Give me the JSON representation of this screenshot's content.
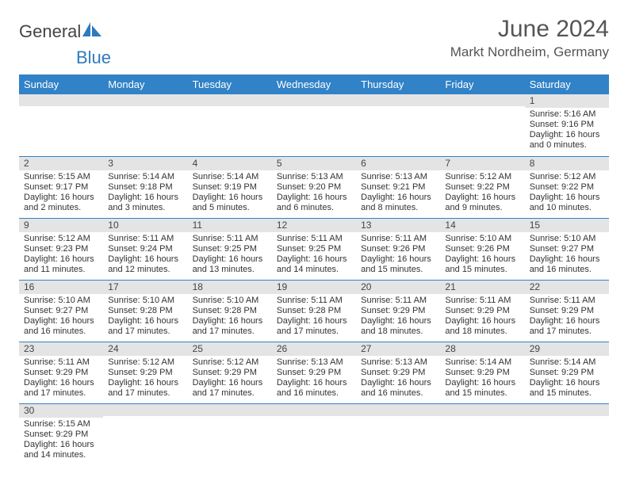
{
  "logo": {
    "text1": "General",
    "text2": "Blue"
  },
  "title": "June 2024",
  "location": "Markt Nordheim, Germany",
  "colors": {
    "header_bg": "#3182c7",
    "header_text": "#ffffff",
    "daynum_bg": "#e4e4e4",
    "rule": "#3182c7",
    "logo_blue": "#2d7bbd",
    "logo_gray": "#444444"
  },
  "weekdays": [
    "Sunday",
    "Monday",
    "Tuesday",
    "Wednesday",
    "Thursday",
    "Friday",
    "Saturday"
  ],
  "weeks": [
    [
      {
        "n": "",
        "sr": "",
        "ss": "",
        "dl": ""
      },
      {
        "n": "",
        "sr": "",
        "ss": "",
        "dl": ""
      },
      {
        "n": "",
        "sr": "",
        "ss": "",
        "dl": ""
      },
      {
        "n": "",
        "sr": "",
        "ss": "",
        "dl": ""
      },
      {
        "n": "",
        "sr": "",
        "ss": "",
        "dl": ""
      },
      {
        "n": "",
        "sr": "",
        "ss": "",
        "dl": ""
      },
      {
        "n": "1",
        "sr": "Sunrise: 5:16 AM",
        "ss": "Sunset: 9:16 PM",
        "dl": "Daylight: 16 hours and 0 minutes."
      }
    ],
    [
      {
        "n": "2",
        "sr": "Sunrise: 5:15 AM",
        "ss": "Sunset: 9:17 PM",
        "dl": "Daylight: 16 hours and 2 minutes."
      },
      {
        "n": "3",
        "sr": "Sunrise: 5:14 AM",
        "ss": "Sunset: 9:18 PM",
        "dl": "Daylight: 16 hours and 3 minutes."
      },
      {
        "n": "4",
        "sr": "Sunrise: 5:14 AM",
        "ss": "Sunset: 9:19 PM",
        "dl": "Daylight: 16 hours and 5 minutes."
      },
      {
        "n": "5",
        "sr": "Sunrise: 5:13 AM",
        "ss": "Sunset: 9:20 PM",
        "dl": "Daylight: 16 hours and 6 minutes."
      },
      {
        "n": "6",
        "sr": "Sunrise: 5:13 AM",
        "ss": "Sunset: 9:21 PM",
        "dl": "Daylight: 16 hours and 8 minutes."
      },
      {
        "n": "7",
        "sr": "Sunrise: 5:12 AM",
        "ss": "Sunset: 9:22 PM",
        "dl": "Daylight: 16 hours and 9 minutes."
      },
      {
        "n": "8",
        "sr": "Sunrise: 5:12 AM",
        "ss": "Sunset: 9:22 PM",
        "dl": "Daylight: 16 hours and 10 minutes."
      }
    ],
    [
      {
        "n": "9",
        "sr": "Sunrise: 5:12 AM",
        "ss": "Sunset: 9:23 PM",
        "dl": "Daylight: 16 hours and 11 minutes."
      },
      {
        "n": "10",
        "sr": "Sunrise: 5:11 AM",
        "ss": "Sunset: 9:24 PM",
        "dl": "Daylight: 16 hours and 12 minutes."
      },
      {
        "n": "11",
        "sr": "Sunrise: 5:11 AM",
        "ss": "Sunset: 9:25 PM",
        "dl": "Daylight: 16 hours and 13 minutes."
      },
      {
        "n": "12",
        "sr": "Sunrise: 5:11 AM",
        "ss": "Sunset: 9:25 PM",
        "dl": "Daylight: 16 hours and 14 minutes."
      },
      {
        "n": "13",
        "sr": "Sunrise: 5:11 AM",
        "ss": "Sunset: 9:26 PM",
        "dl": "Daylight: 16 hours and 15 minutes."
      },
      {
        "n": "14",
        "sr": "Sunrise: 5:10 AM",
        "ss": "Sunset: 9:26 PM",
        "dl": "Daylight: 16 hours and 15 minutes."
      },
      {
        "n": "15",
        "sr": "Sunrise: 5:10 AM",
        "ss": "Sunset: 9:27 PM",
        "dl": "Daylight: 16 hours and 16 minutes."
      }
    ],
    [
      {
        "n": "16",
        "sr": "Sunrise: 5:10 AM",
        "ss": "Sunset: 9:27 PM",
        "dl": "Daylight: 16 hours and 16 minutes."
      },
      {
        "n": "17",
        "sr": "Sunrise: 5:10 AM",
        "ss": "Sunset: 9:28 PM",
        "dl": "Daylight: 16 hours and 17 minutes."
      },
      {
        "n": "18",
        "sr": "Sunrise: 5:10 AM",
        "ss": "Sunset: 9:28 PM",
        "dl": "Daylight: 16 hours and 17 minutes."
      },
      {
        "n": "19",
        "sr": "Sunrise: 5:11 AM",
        "ss": "Sunset: 9:28 PM",
        "dl": "Daylight: 16 hours and 17 minutes."
      },
      {
        "n": "20",
        "sr": "Sunrise: 5:11 AM",
        "ss": "Sunset: 9:29 PM",
        "dl": "Daylight: 16 hours and 18 minutes."
      },
      {
        "n": "21",
        "sr": "Sunrise: 5:11 AM",
        "ss": "Sunset: 9:29 PM",
        "dl": "Daylight: 16 hours and 18 minutes."
      },
      {
        "n": "22",
        "sr": "Sunrise: 5:11 AM",
        "ss": "Sunset: 9:29 PM",
        "dl": "Daylight: 16 hours and 17 minutes."
      }
    ],
    [
      {
        "n": "23",
        "sr": "Sunrise: 5:11 AM",
        "ss": "Sunset: 9:29 PM",
        "dl": "Daylight: 16 hours and 17 minutes."
      },
      {
        "n": "24",
        "sr": "Sunrise: 5:12 AM",
        "ss": "Sunset: 9:29 PM",
        "dl": "Daylight: 16 hours and 17 minutes."
      },
      {
        "n": "25",
        "sr": "Sunrise: 5:12 AM",
        "ss": "Sunset: 9:29 PM",
        "dl": "Daylight: 16 hours and 17 minutes."
      },
      {
        "n": "26",
        "sr": "Sunrise: 5:13 AM",
        "ss": "Sunset: 9:29 PM",
        "dl": "Daylight: 16 hours and 16 minutes."
      },
      {
        "n": "27",
        "sr": "Sunrise: 5:13 AM",
        "ss": "Sunset: 9:29 PM",
        "dl": "Daylight: 16 hours and 16 minutes."
      },
      {
        "n": "28",
        "sr": "Sunrise: 5:14 AM",
        "ss": "Sunset: 9:29 PM",
        "dl": "Daylight: 16 hours and 15 minutes."
      },
      {
        "n": "29",
        "sr": "Sunrise: 5:14 AM",
        "ss": "Sunset: 9:29 PM",
        "dl": "Daylight: 16 hours and 15 minutes."
      }
    ],
    [
      {
        "n": "30",
        "sr": "Sunrise: 5:15 AM",
        "ss": "Sunset: 9:29 PM",
        "dl": "Daylight: 16 hours and 14 minutes."
      },
      {
        "n": "",
        "sr": "",
        "ss": "",
        "dl": ""
      },
      {
        "n": "",
        "sr": "",
        "ss": "",
        "dl": ""
      },
      {
        "n": "",
        "sr": "",
        "ss": "",
        "dl": ""
      },
      {
        "n": "",
        "sr": "",
        "ss": "",
        "dl": ""
      },
      {
        "n": "",
        "sr": "",
        "ss": "",
        "dl": ""
      },
      {
        "n": "",
        "sr": "",
        "ss": "",
        "dl": ""
      }
    ]
  ]
}
